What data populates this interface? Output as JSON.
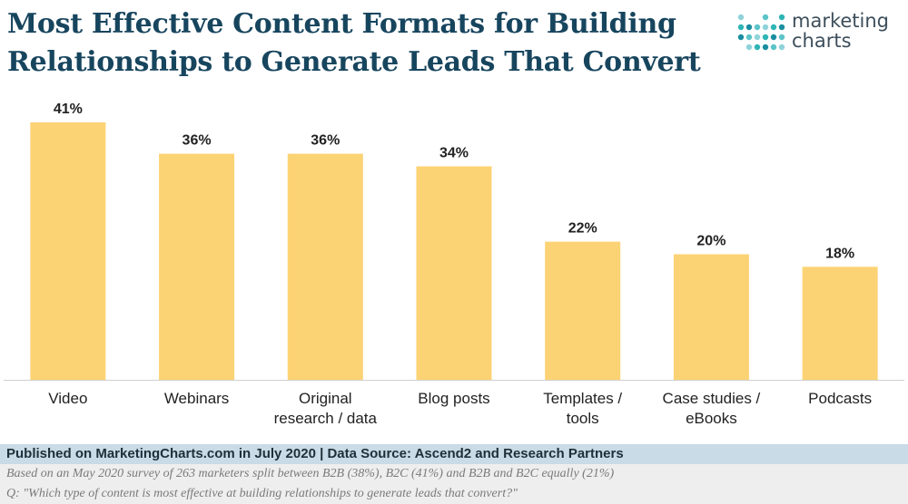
{
  "header": {
    "title_line1": "Most Effective Content Formats for Building",
    "title_line2": "Relationships to Generate Leads That Convert"
  },
  "logo": {
    "line1": "marketing",
    "line2": "charts",
    "dot_colors": [
      "#8fd3d9",
      "#2fb5b5",
      "#1a8ea0",
      "#5bc4c8"
    ]
  },
  "chart_data": {
    "type": "bar",
    "categories": [
      [
        "Video"
      ],
      [
        "Webinars"
      ],
      [
        "Original",
        "research / data"
      ],
      [
        "Blog posts"
      ],
      [
        "Templates /",
        "tools"
      ],
      [
        "Case studies /",
        "eBooks"
      ],
      [
        "Podcasts"
      ]
    ],
    "values": [
      41,
      36,
      36,
      34,
      22,
      20,
      18
    ],
    "value_labels": [
      "41%",
      "36%",
      "36%",
      "34%",
      "22%",
      "20%",
      "18%"
    ],
    "unit": "%",
    "bar_color": "#fcd374",
    "grid": false,
    "legend": "none"
  },
  "footer": {
    "source": "Published on MarketingCharts.com in July 2020 | Data Source: Ascend2 and Research Partners",
    "note1": "Based on an May 2020 survey of 263 marketers split between B2B (38%), B2C (41%) and B2B and B2C equally (21%)",
    "note2": "Q: \"Which type of content is most effective at building relationships to generate leads that convert?\""
  }
}
